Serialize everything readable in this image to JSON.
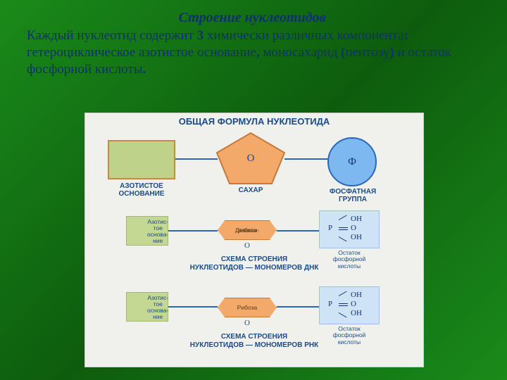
{
  "slide": {
    "title": "Строение нуклеотидов",
    "body_html": "Каждый нуклеотид содержит <b>3</b> химически различных компонента<b>:</b> гетероциклическое азотистое основание<b>,</b> моносахарид <b>(</b>пентозу<b>)</b> и остаток фосфорной кислоты<b>.</b>",
    "title_color": "#103070",
    "body_color": "#103070",
    "title_fontsize": 20,
    "body_fontsize": 19,
    "background_gradient": [
      "#1a8a1a",
      "#0d5c0d",
      "#1a8a1a"
    ]
  },
  "diagram": {
    "panel_bg": "#f0f1ec",
    "header": "ОБЩАЯ ФОРМУЛА НУКЛЕОТИДА",
    "row1": {
      "base": {
        "label": "АЗОТИСТОЕ ОСНОВАНИЕ",
        "fill": "#bfd28a",
        "border": "#c98a3d"
      },
      "sugar": {
        "label": "САХАР",
        "center": "О",
        "fill": "#f3a96a",
        "border": "#c47a3a"
      },
      "phosphate": {
        "label": "ФОСФАТНАЯ ГРУППА",
        "center": "Ф",
        "fill": "#7db8f0",
        "border": "#2a67b8"
      }
    },
    "row2": {
      "base_text": "Азотис-\nтое\nоснова-\nние",
      "sugar": {
        "line1": "Дезокси-",
        "line2": "рибоза",
        "sub": "О"
      },
      "phos": {
        "P": "P",
        "O": "O",
        "OH": "OH",
        "caption": "Остаток\nфосфорной\nкислоты"
      },
      "title": "СХЕМА СТРОЕНИЯ\nНУКЛЕОТИДОВ — МОНОМЕРОВ ДНК"
    },
    "row3": {
      "base_text": "Азотис-\nтое\nоснова-\nние",
      "sugar": {
        "line1": "Рибоза",
        "sub": "О"
      },
      "phos": {
        "P": "P",
        "O": "O",
        "OH": "OH",
        "caption": "Остаток\nфосфорной\nкислоты"
      },
      "title": "СХЕМА СТРОЕНИЯ\nНУКЛЕОТИДОВ — МОНОМЕРОВ РНК"
    },
    "colors": {
      "label": "#1a4a88",
      "connector": "#2a67b8",
      "green_box": "#c5d893",
      "blue_box": "#cfe3f7",
      "orange": "#f3a96a"
    }
  }
}
